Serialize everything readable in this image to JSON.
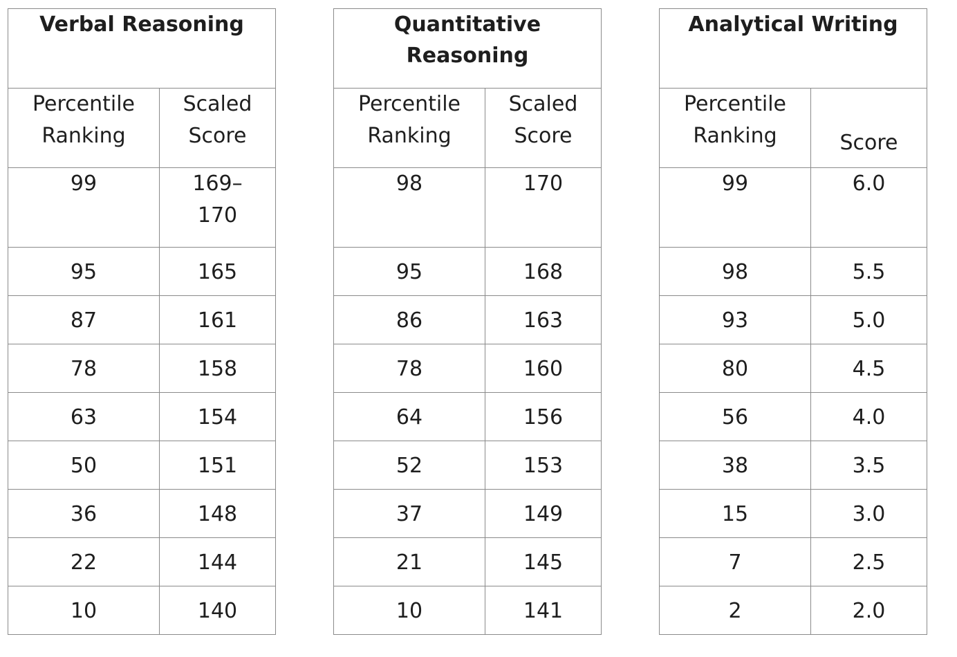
{
  "tables": [
    {
      "id": "verbal",
      "title_lines": [
        "Verbal Reasoning"
      ],
      "col1_lines": [
        "Percentile",
        "Ranking"
      ],
      "col2_lines": [
        "Scaled",
        "Score"
      ],
      "rows": [
        {
          "percentile": "99",
          "score_lines": [
            "169–",
            "170"
          ]
        },
        {
          "percentile": "95",
          "score_lines": [
            "165"
          ]
        },
        {
          "percentile": "87",
          "score_lines": [
            "161"
          ]
        },
        {
          "percentile": "78",
          "score_lines": [
            "158"
          ]
        },
        {
          "percentile": "63",
          "score_lines": [
            "154"
          ]
        },
        {
          "percentile": "50",
          "score_lines": [
            "151"
          ]
        },
        {
          "percentile": "36",
          "score_lines": [
            "148"
          ]
        },
        {
          "percentile": "22",
          "score_lines": [
            "144"
          ]
        },
        {
          "percentile": "10",
          "score_lines": [
            "140"
          ]
        }
      ]
    },
    {
      "id": "quant",
      "title_lines": [
        "Quantitative",
        "Reasoning"
      ],
      "col1_lines": [
        "Percentile",
        "Ranking"
      ],
      "col2_lines": [
        "Scaled",
        "Score"
      ],
      "rows": [
        {
          "percentile": "98",
          "score_lines": [
            "170"
          ]
        },
        {
          "percentile": "95",
          "score_lines": [
            "168"
          ]
        },
        {
          "percentile": "86",
          "score_lines": [
            "163"
          ]
        },
        {
          "percentile": "78",
          "score_lines": [
            "160"
          ]
        },
        {
          "percentile": "64",
          "score_lines": [
            "156"
          ]
        },
        {
          "percentile": "52",
          "score_lines": [
            "153"
          ]
        },
        {
          "percentile": "37",
          "score_lines": [
            "149"
          ]
        },
        {
          "percentile": "21",
          "score_lines": [
            "145"
          ]
        },
        {
          "percentile": "10",
          "score_lines": [
            "141"
          ]
        }
      ]
    },
    {
      "id": "writing",
      "title_lines": [
        "Analytical Writing"
      ],
      "col1_lines": [
        "Percentile",
        "Ranking"
      ],
      "col2_lines": [
        "Score"
      ],
      "rows": [
        {
          "percentile": "99",
          "score_lines": [
            "6.0"
          ]
        },
        {
          "percentile": "98",
          "score_lines": [
            "5.5"
          ]
        },
        {
          "percentile": "93",
          "score_lines": [
            "5.0"
          ]
        },
        {
          "percentile": "80",
          "score_lines": [
            "4.5"
          ]
        },
        {
          "percentile": "56",
          "score_lines": [
            "4.0"
          ]
        },
        {
          "percentile": "38",
          "score_lines": [
            "3.5"
          ]
        },
        {
          "percentile": "15",
          "score_lines": [
            "3.0"
          ]
        },
        {
          "percentile": "7",
          "score_lines": [
            "2.5"
          ]
        },
        {
          "percentile": "2",
          "score_lines": [
            "2.0"
          ]
        }
      ]
    }
  ]
}
